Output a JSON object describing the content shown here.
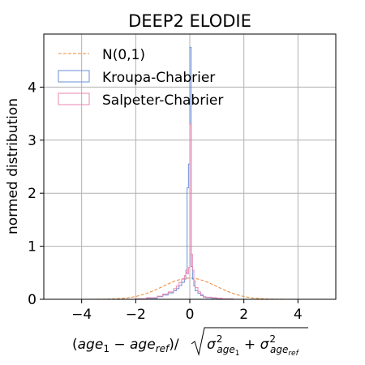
{
  "chart_data": {
    "type": "step-histogram",
    "title": "DEEP2 ELODIE",
    "ylabel": "normed distribution",
    "xlabel_parts": {
      "open": "(",
      "term1": "age",
      "sub1": "1",
      "minus": " − ",
      "term2": "age",
      "sub2": "ref",
      "close": ")/",
      "sigma1": "σ",
      "sup1": "2",
      "sigsub1": "age",
      "sigsubsub1": "1",
      "plus": " + ",
      "sigma2": "σ",
      "sup2": "2",
      "sigsub2": "age",
      "sigsubsub2": "ref"
    },
    "xlim": [
      -5.4,
      5.4
    ],
    "ylim": [
      0,
      5.0
    ],
    "xticks": [
      -4,
      -2,
      0,
      2,
      4
    ],
    "xtick_labels": [
      "−4",
      "−2",
      "0",
      "2",
      "4"
    ],
    "yticks": [
      0,
      1,
      2,
      3,
      4
    ],
    "ytick_labels": [
      "0",
      "1",
      "2",
      "3",
      "4"
    ],
    "grid": true,
    "legend_position": "top-left",
    "legend": [
      "N(0,1)",
      "Kroupa-Chabrier",
      "Salpeter-Chabrier"
    ],
    "colors": {
      "normal": "#ee8833",
      "kroupa": "#6a8fd8",
      "salpeter": "#e887b0"
    },
    "series": [
      {
        "name": "N(0,1)",
        "kind": "curve",
        "style": "dashed",
        "mean": 0,
        "sigma": 1
      },
      {
        "name": "Kroupa-Chabrier",
        "kind": "step",
        "bin_edges": [
          -2.0,
          -1.6,
          -1.2,
          -1.0,
          -0.8,
          -0.6,
          -0.5,
          -0.4,
          -0.3,
          -0.2,
          -0.15,
          -0.1,
          -0.05,
          0.0,
          0.05,
          0.1,
          0.15,
          0.2,
          0.3,
          0.4,
          0.5,
          0.6,
          0.8,
          1.0,
          1.2,
          1.6,
          2.0
        ],
        "heights": [
          0.01,
          0.02,
          0.05,
          0.08,
          0.12,
          0.16,
          0.2,
          0.26,
          0.32,
          0.38,
          0.5,
          2.1,
          2.55,
          4.75,
          0.62,
          0.38,
          0.25,
          0.16,
          0.11,
          0.07,
          0.04,
          0.03,
          0.02,
          0.01,
          0.005,
          0.0
        ]
      },
      {
        "name": "Salpeter-Chabrier",
        "kind": "step",
        "bin_edges": [
          -2.0,
          -1.6,
          -1.2,
          -1.0,
          -0.8,
          -0.6,
          -0.5,
          -0.4,
          -0.3,
          -0.2,
          -0.15,
          -0.1,
          -0.05,
          0.0,
          0.05,
          0.1,
          0.15,
          0.2,
          0.3,
          0.4,
          0.5,
          0.6,
          0.8,
          1.0,
          1.2,
          1.6,
          2.0
        ],
        "heights": [
          0.01,
          0.03,
          0.06,
          0.1,
          0.14,
          0.2,
          0.25,
          0.32,
          0.38,
          0.45,
          0.55,
          0.48,
          0.6,
          3.3,
          0.85,
          0.55,
          0.35,
          0.22,
          0.14,
          0.09,
          0.05,
          0.04,
          0.03,
          0.02,
          0.01,
          0.0
        ]
      }
    ]
  }
}
